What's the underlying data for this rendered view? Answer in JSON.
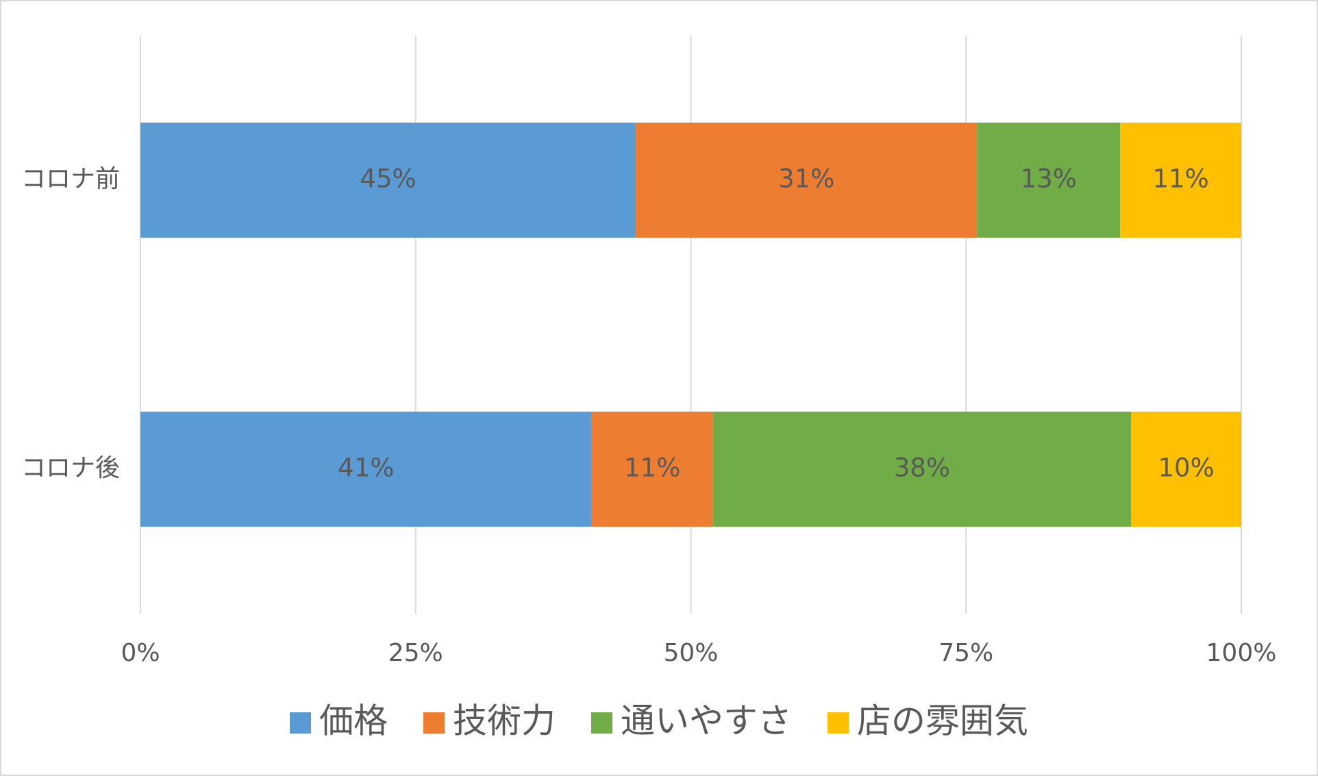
{
  "chart_data": {
    "type": "stacked-bar-horizontal",
    "categories": [
      "コロナ前",
      "コロナ後"
    ],
    "series": [
      {
        "name": "価格",
        "color": "#5b9bd5",
        "values": [
          45,
          41
        ],
        "value_labels": [
          "45%",
          "41%"
        ]
      },
      {
        "name": "技術力",
        "color": "#ed7d31",
        "values": [
          31,
          11
        ],
        "value_labels": [
          "31%",
          "11%"
        ]
      },
      {
        "name": "通いやすさ",
        "color": "#70ad47",
        "values": [
          13,
          38
        ],
        "value_labels": [
          "13%",
          "38%"
        ]
      },
      {
        "name": "店の雰囲気",
        "color": "#ffc000",
        "values": [
          11,
          10
        ],
        "value_labels": [
          "11%",
          "10%"
        ]
      }
    ],
    "xlim": [
      0,
      100
    ],
    "xticks": [
      {
        "value": 0,
        "label": "0%"
      },
      {
        "value": 25,
        "label": "25%"
      },
      {
        "value": 50,
        "label": "50%"
      },
      {
        "value": 75,
        "label": "75%"
      },
      {
        "value": 100,
        "label": "100%"
      }
    ],
    "grid": true,
    "legend": "bottom"
  }
}
